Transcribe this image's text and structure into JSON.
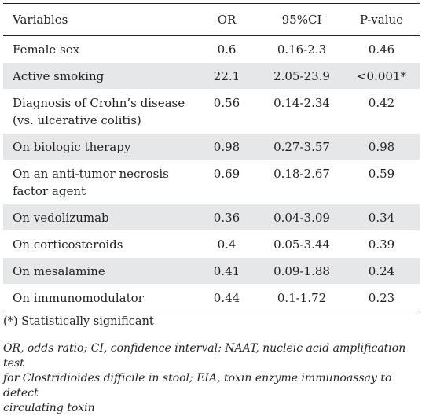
{
  "table": {
    "headers": {
      "variable": "Variables",
      "or": "OR",
      "ci": "95%CI",
      "p": "P-value"
    },
    "rows": [
      {
        "variable_lines": [
          "Female sex"
        ],
        "or": "0.6",
        "ci": "0.16-2.3",
        "p": "0.46"
      },
      {
        "variable_lines": [
          "Active smoking"
        ],
        "or": "22.1",
        "ci": "2.05-23.9",
        "p": "<0.001*"
      },
      {
        "variable_lines": [
          "Diagnosis of Crohn’s disease",
          "(vs. ulcerative colitis)"
        ],
        "or": "0.56",
        "ci": "0.14-2.34",
        "p": "0.42"
      },
      {
        "variable_lines": [
          "On biologic therapy"
        ],
        "or": "0.98",
        "ci": "0.27-3.57",
        "p": "0.98"
      },
      {
        "variable_lines": [
          "On an anti-tumor necrosis",
          "factor agent"
        ],
        "or": "0.69",
        "ci": "0.18-2.67",
        "p": "0.59"
      },
      {
        "variable_lines": [
          "On vedolizumab"
        ],
        "or": "0.36",
        "ci": "0.04-3.09",
        "p": "0.34"
      },
      {
        "variable_lines": [
          "On corticosteroids"
        ],
        "or": "0.4",
        "ci": "0.05-3.44",
        "p": "0.39"
      },
      {
        "variable_lines": [
          "On mesalamine"
        ],
        "or": "0.41",
        "ci": "0.09-1.88",
        "p": "0.24"
      },
      {
        "variable_lines": [
          "On immunomodulator"
        ],
        "or": "0.44",
        "ci": "0.1-1.72",
        "p": "0.23"
      }
    ]
  },
  "footnotes": {
    "significance": "(*) Statistically significant",
    "abbreviations_lines": [
      "OR, odds ratio; CI, confidence interval; NAAT, nucleic acid amplification test",
      "for Clostridioides difficile in stool; EIA, toxin enzyme immunoassay to detect",
      "circulating toxin"
    ]
  }
}
